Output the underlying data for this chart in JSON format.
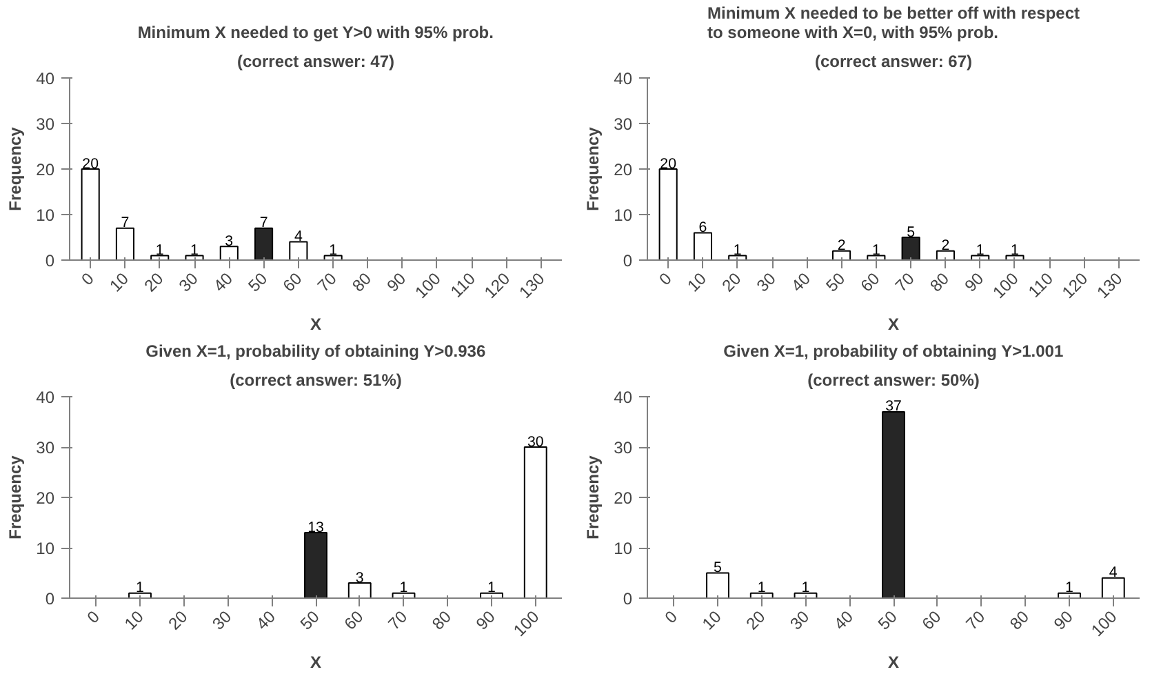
{
  "chart_data": [
    {
      "type": "bar",
      "title": "Minimum X needed to get Y>0 with 95% prob.",
      "subtitle": "(correct answer: 47)",
      "xlabel": "X",
      "ylabel": "Frequency",
      "categories": [
        "0",
        "10",
        "20",
        "30",
        "40",
        "50",
        "60",
        "70",
        "80",
        "90",
        "100",
        "110",
        "120",
        "130"
      ],
      "values": [
        20,
        7,
        1,
        1,
        3,
        7,
        4,
        1,
        null,
        null,
        null,
        null,
        null,
        null
      ],
      "colors": [
        "#ffffff",
        "#ffffff",
        "#ffffff",
        "#ffffff",
        "#ffffff",
        "#262626",
        "#ffffff",
        "#ffffff",
        "#ffffff",
        "#ffffff",
        "#ffffff",
        "#ffffff",
        "#ffffff",
        "#ffffff"
      ],
      "ylim": [
        0,
        40
      ],
      "yticks": [
        0,
        10,
        20,
        30,
        40
      ],
      "grid": false,
      "legend": false,
      "data_labels": true
    },
    {
      "type": "bar",
      "title": "Minimum X needed to be better off with respect to someone with X=0, with 95% prob.",
      "subtitle": "(correct answer: 67)",
      "xlabel": "X",
      "ylabel": "Frequency",
      "categories": [
        "0",
        "10",
        "20",
        "30",
        "40",
        "50",
        "60",
        "70",
        "80",
        "90",
        "100",
        "110",
        "120",
        "130"
      ],
      "values": [
        20,
        6,
        1,
        null,
        null,
        2,
        1,
        5,
        2,
        1,
        1,
        null,
        null,
        null
      ],
      "colors": [
        "#ffffff",
        "#ffffff",
        "#ffffff",
        "#ffffff",
        "#ffffff",
        "#ffffff",
        "#ffffff",
        "#262626",
        "#ffffff",
        "#ffffff",
        "#ffffff",
        "#ffffff",
        "#ffffff",
        "#ffffff"
      ],
      "ylim": [
        0,
        40
      ],
      "yticks": [
        0,
        10,
        20,
        30,
        40
      ],
      "grid": false,
      "legend": false,
      "data_labels": true
    },
    {
      "type": "bar",
      "title": "Given X=1, probability of obtaining Y>0.936",
      "subtitle": "(correct answer: 51%)",
      "xlabel": "X",
      "ylabel": "Frequency",
      "categories": [
        "0",
        "10",
        "20",
        "30",
        "40",
        "50",
        "60",
        "70",
        "80",
        "90",
        "100"
      ],
      "values": [
        null,
        1,
        null,
        null,
        null,
        13,
        3,
        1,
        null,
        1,
        30
      ],
      "colors": [
        "#ffffff",
        "#ffffff",
        "#ffffff",
        "#ffffff",
        "#ffffff",
        "#262626",
        "#ffffff",
        "#ffffff",
        "#ffffff",
        "#ffffff",
        "#ffffff"
      ],
      "ylim": [
        0,
        40
      ],
      "yticks": [
        0,
        10,
        20,
        30,
        40
      ],
      "grid": false,
      "legend": false,
      "data_labels": true
    },
    {
      "type": "bar",
      "title": "Given X=1, probability of obtaining Y>1.001",
      "subtitle": "(correct answer: 50%)",
      "xlabel": "X",
      "ylabel": "Frequency",
      "categories": [
        "0",
        "10",
        "20",
        "30",
        "40",
        "50",
        "60",
        "70",
        "80",
        "90",
        "100"
      ],
      "values": [
        null,
        5,
        1,
        1,
        null,
        37,
        null,
        null,
        null,
        1,
        4
      ],
      "colors": [
        "#ffffff",
        "#ffffff",
        "#ffffff",
        "#ffffff",
        "#ffffff",
        "#262626",
        "#ffffff",
        "#ffffff",
        "#ffffff",
        "#ffffff",
        "#ffffff"
      ],
      "ylim": [
        0,
        40
      ],
      "yticks": [
        0,
        10,
        20,
        30,
        40
      ],
      "grid": false,
      "legend": false,
      "data_labels": true
    }
  ]
}
